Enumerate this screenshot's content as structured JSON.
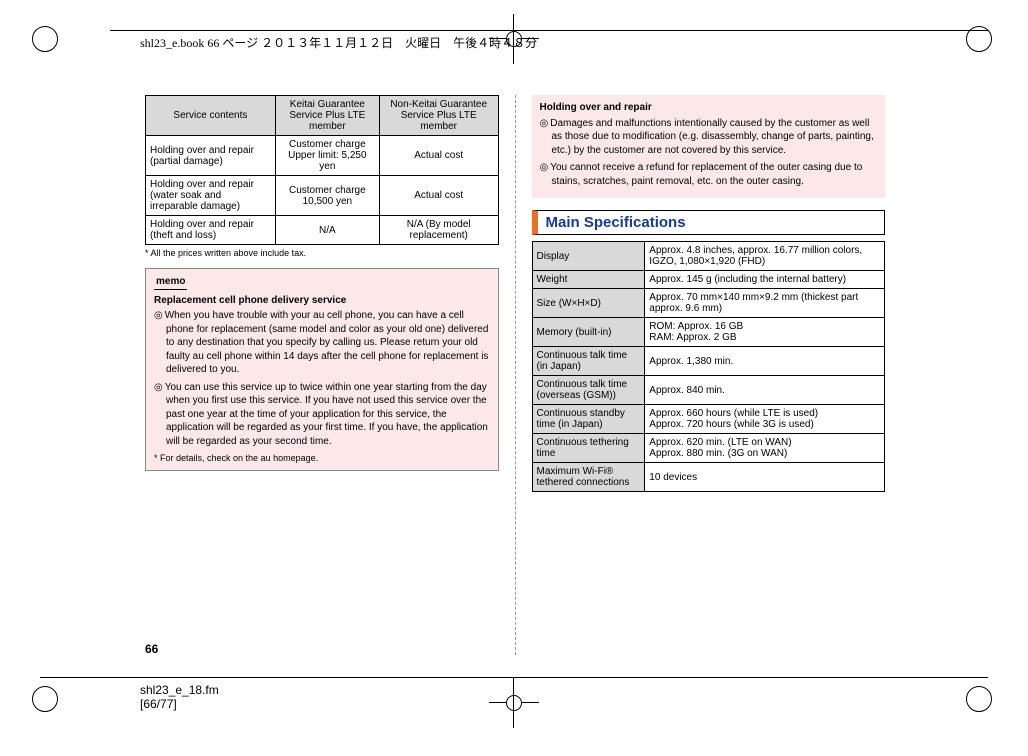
{
  "header": "shl23_e.book  66 ページ  ２０１３年１１月１２日　火曜日　午後４時４８分",
  "footer1": "shl23_e_18.fm",
  "footer2": "[66/77]",
  "pageNum": "66",
  "table1": {
    "h1": "Service contents",
    "h2": "Keitai Guarantee Service Plus LTE member",
    "h3": "Non-Keitai Guarantee Service Plus LTE member",
    "r1c1": "Holding over and repair (partial damage)",
    "r1c2": "Customer charge Upper limit: 5,250 yen",
    "r1c3": "Actual cost",
    "r2c1": "Holding over and repair (water soak and irreparable damage)",
    "r2c2": "Customer charge 10,500 yen",
    "r2c3": "Actual cost",
    "r3c1": "Holding over and repair (theft and loss)",
    "r3c2": "N/A",
    "r3c3": "N/A (By model replacement)",
    "note": "*  All the prices written above include tax."
  },
  "memo": {
    "label": "memo",
    "title": "Replacement cell phone delivery service",
    "p1": "When you have trouble with your au cell phone, you can have a cell phone for replacement (same model and color as your old one) delivered to any destination that you specify by calling us. Please return your old faulty au cell phone within 14 days after the cell phone for replacement is delivered to you.",
    "p2": "You can use this service up to twice within one year starting from the day when you first use this service. If you have not used this service over the past one year at the time of your application for this service, the application will be regarded as your first time. If you have, the application will be regarded as your second time.",
    "note": "*  For details, check on the au homepage."
  },
  "warn": {
    "title": "Holding over and repair",
    "p1": "Damages and malfunctions intentionally caused by the customer as well as those due to modification (e.g. disassembly, change of parts, painting, etc.) by the customer are not covered by this service.",
    "p2": "You cannot receive a refund for replacement of the outer casing due to stains, scratches, paint removal, etc. on the outer casing."
  },
  "sectionTitle": "Main Specifications",
  "specs": {
    "r1a": "Display",
    "r1b": "Approx. 4.8 inches, approx. 16.77 million colors, IGZO, 1,080×1,920 (FHD)",
    "r2a": "Weight",
    "r2b": "Approx. 145 g (including the internal battery)",
    "r3a": "Size (W×H×D)",
    "r3b": "Approx. 70 mm×140 mm×9.2 mm (thickest part approx. 9.6 mm)",
    "r4a": "Memory (built-in)",
    "r4b": "ROM: Approx. 16 GB\nRAM: Approx. 2 GB",
    "r5a": "Continuous talk time (in Japan)",
    "r5b": "Approx. 1,380 min.",
    "r6a": "Continuous talk time (overseas (GSM))",
    "r6b": "Approx. 840 min.",
    "r7a": "Continuous standby time (in Japan)",
    "r7b": "Approx. 660 hours (while LTE is used)\nApprox. 720 hours (while 3G is used)",
    "r8a": "Continuous tethering time",
    "r8b": "Approx. 620 min. (LTE on WAN)\nApprox. 880 min. (3G on WAN)",
    "r9a": "Maximum Wi-Fi® tethered connections",
    "r9b": "10 devices"
  }
}
